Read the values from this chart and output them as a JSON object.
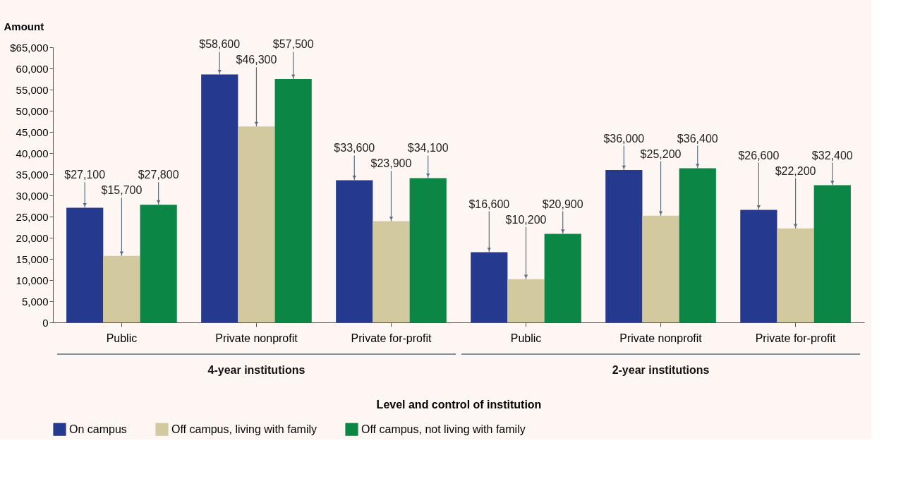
{
  "chart_data": {
    "type": "bar",
    "categories": [
      "Public",
      "Private nonprofit",
      "Private for-profit",
      "Public",
      "Private nonprofit",
      "Private for-profit"
    ],
    "series": [
      {
        "name": "On campus",
        "color": "#253a8e",
        "values": [
          27100,
          58600,
          33600,
          16600,
          36000,
          26600
        ],
        "value_labels": [
          "$27,100",
          "$58,600",
          "$33,600",
          "$16,600",
          "$36,000",
          "$26,600"
        ]
      },
      {
        "name": "Off campus, living with family",
        "color": "#d3c99f",
        "values": [
          15700,
          46300,
          23900,
          10200,
          25200,
          22200
        ],
        "value_labels": [
          "$15,700",
          "$46,300",
          "$23,900",
          "$10,200",
          "$25,200",
          "$22,200"
        ]
      },
      {
        "name": "Off campus, not living with family",
        "color": "#0b8645",
        "values": [
          27800,
          57500,
          34100,
          20900,
          36400,
          32400
        ],
        "value_labels": [
          "$27,800",
          "$57,500",
          "$34,100",
          "$20,900",
          "$36,400",
          "$32,400"
        ]
      }
    ],
    "ylabel": "Amount",
    "xlabel": "Level and control of institution",
    "annotations": [
      "4-year institutions",
      "2-year institutions"
    ],
    "ylim": [
      0,
      65000
    ],
    "yticks": [
      0,
      {
        "value": 5000,
        "label": "5,000"
      },
      {
        "value": 10000,
        "label": "10,000"
      },
      {
        "value": 15000,
        "label": "15,000"
      },
      {
        "value": 20000,
        "label": "20,000"
      },
      {
        "value": 25000,
        "label": "25,000"
      },
      {
        "value": 30000,
        "label": "30,000"
      },
      {
        "value": 35000,
        "label": "35,000"
      },
      {
        "value": 40000,
        "label": "40,000"
      },
      {
        "value": 45000,
        "label": "45,000"
      },
      {
        "value": 50000,
        "label": "50,000"
      },
      {
        "value": 55000,
        "label": "55,000"
      },
      {
        "value": 60000,
        "label": "60,000"
      },
      {
        "value": 65000,
        "label": "$65,000"
      }
    ],
    "grid": false,
    "legend": "bottom"
  }
}
